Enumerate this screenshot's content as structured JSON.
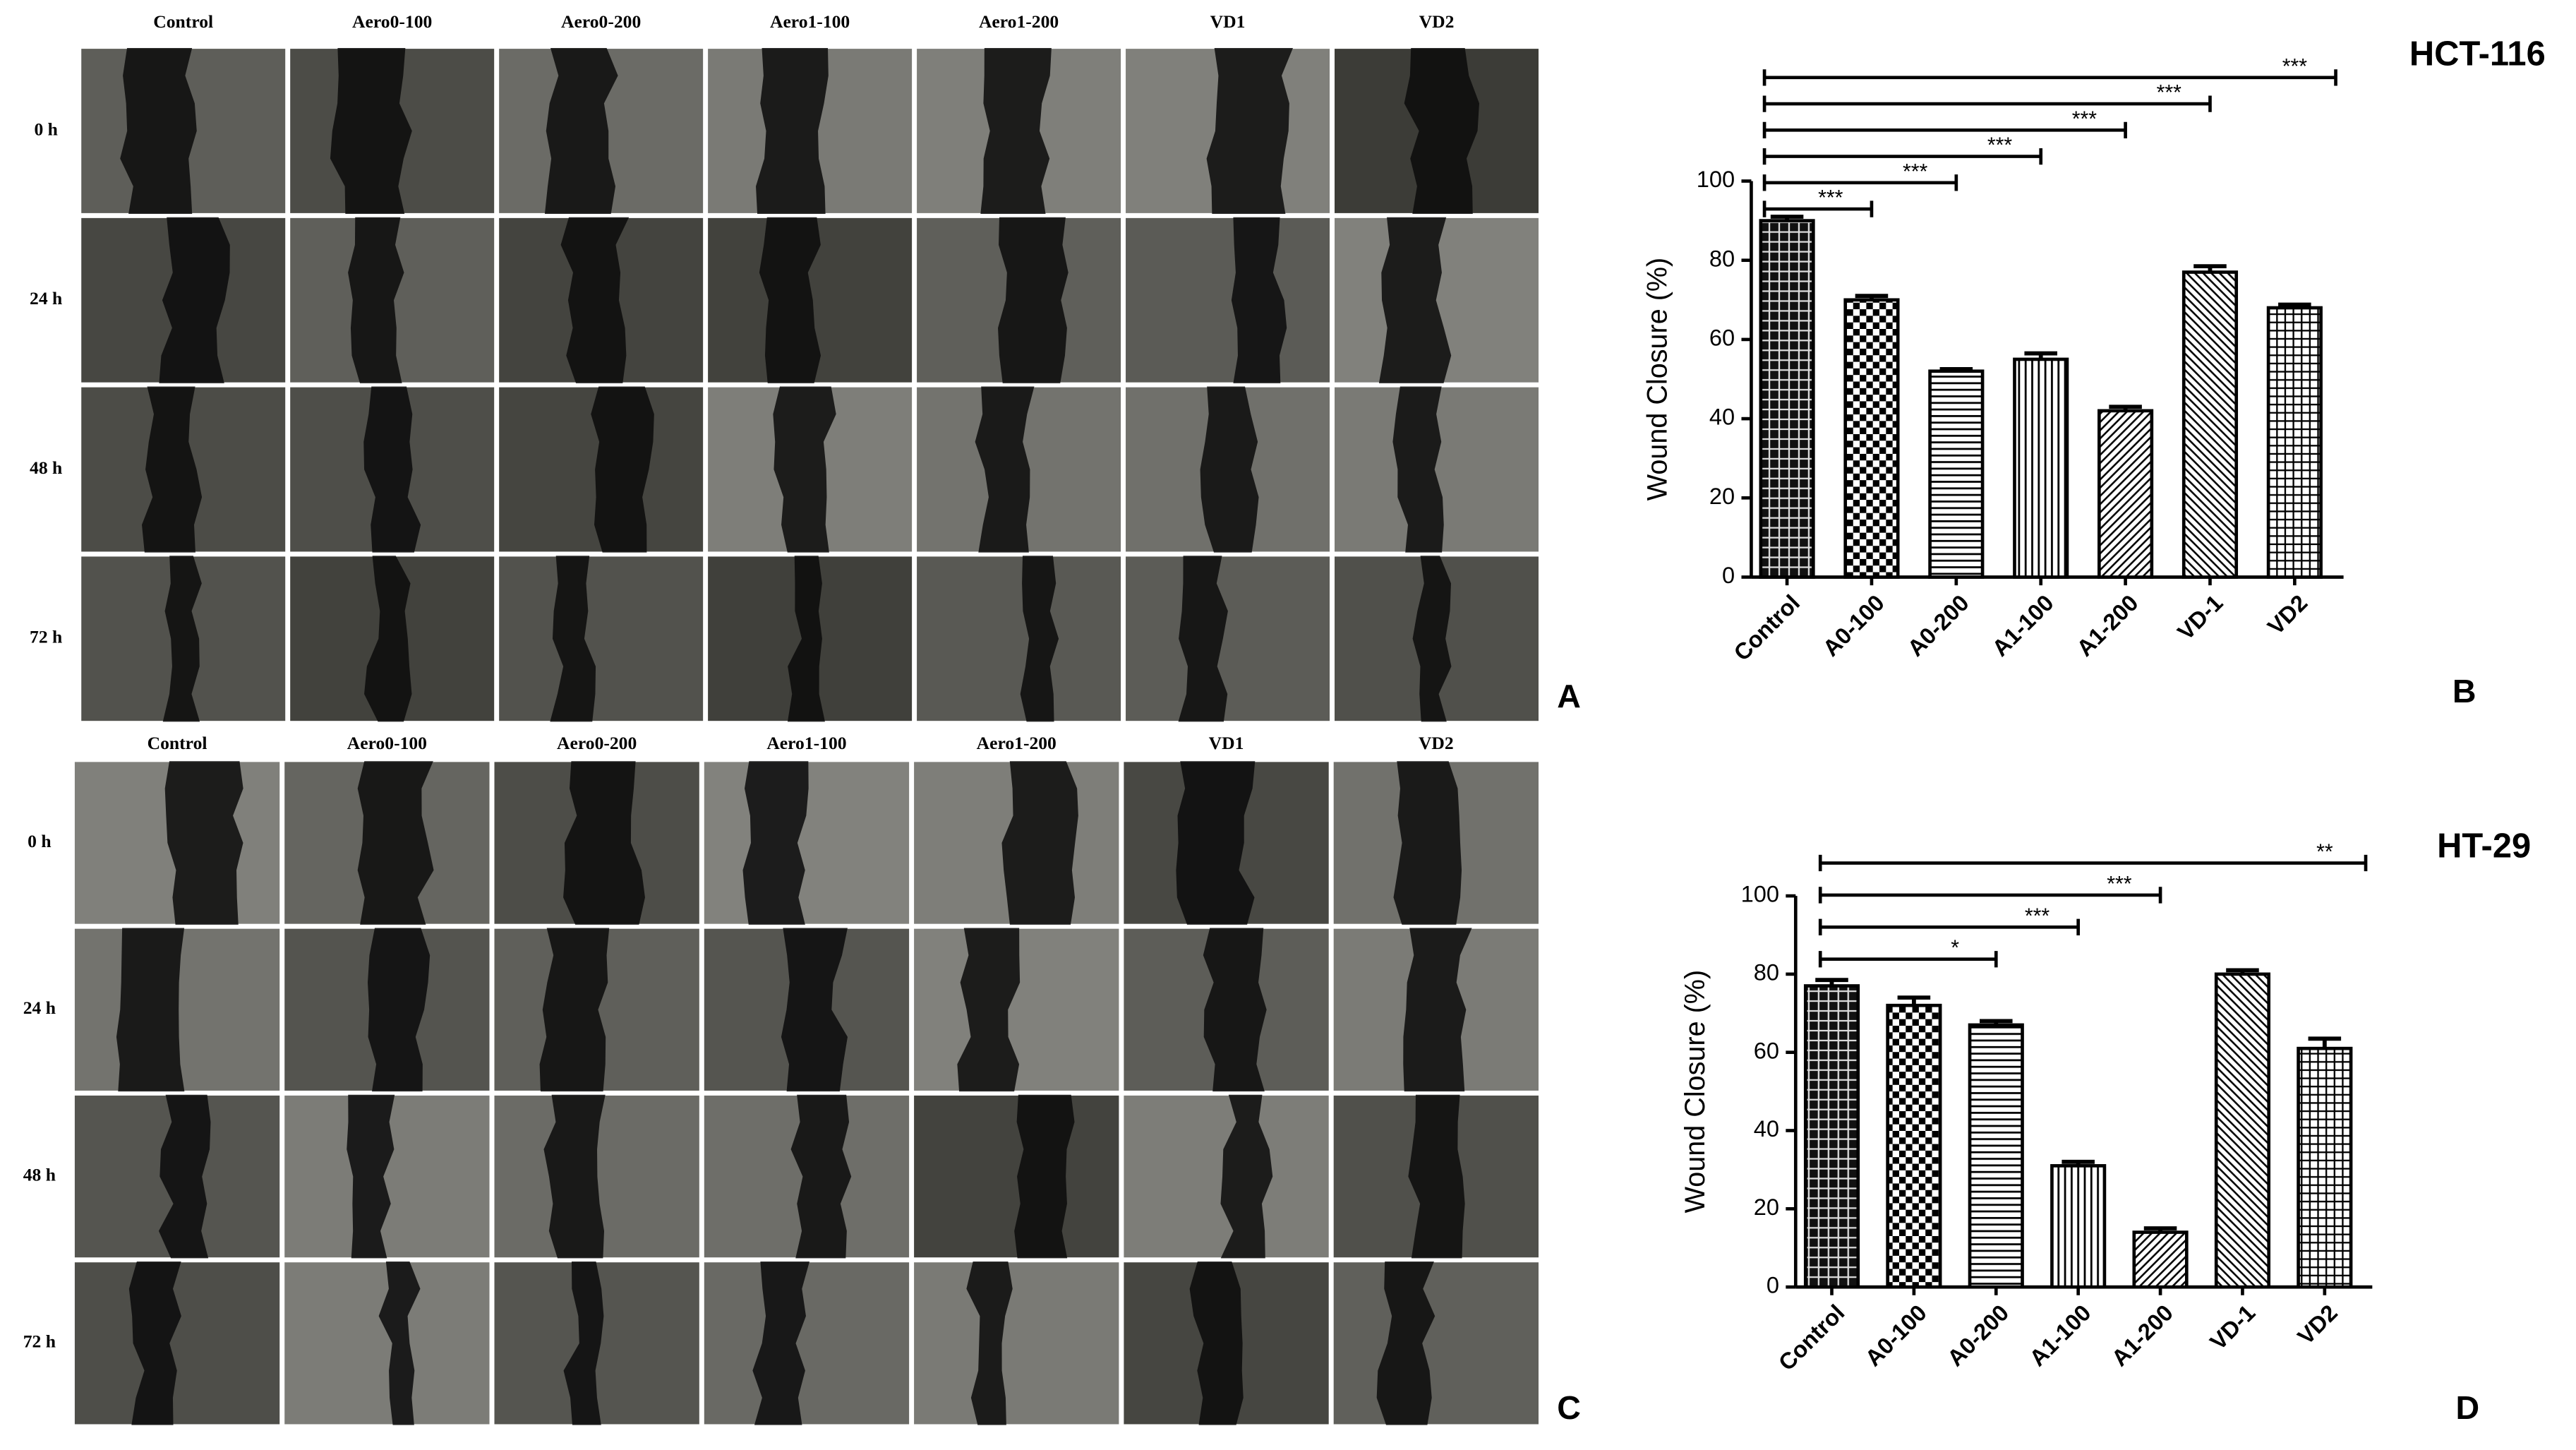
{
  "chart_data": [
    {
      "type": "bar",
      "label": "B",
      "title": "HCT-116",
      "ylabel": "Wound Closure (%)",
      "categories": [
        "Control",
        "A0-100",
        "A0-200",
        "A1-100",
        "A1-200",
        "VD-1",
        "VD2"
      ],
      "values": [
        90,
        70,
        52,
        55,
        42,
        77,
        68
      ],
      "errors": [
        1,
        1,
        0.5,
        1.5,
        1,
        1.5,
        0.8
      ],
      "significance": [
        null,
        "***",
        "***",
        "***",
        "***",
        "***",
        "***"
      ],
      "color": "#000000",
      "ylim": [
        0,
        100
      ],
      "yticks": [
        0,
        20,
        40,
        60,
        80,
        100
      ]
    },
    {
      "type": "bar",
      "label": "D",
      "title": "HT-29",
      "ylabel": "Wound Closure (%)",
      "categories": [
        "Control",
        "A0-100",
        "A0-200",
        "A1-100",
        "A1-200",
        "VD-1",
        "VD2"
      ],
      "values": [
        77,
        72,
        67,
        31,
        14,
        80,
        61
      ],
      "errors": [
        1.5,
        2,
        1,
        1,
        1,
        1,
        2.5
      ],
      "significance": [
        null,
        null,
        "*",
        "***",
        "***",
        null,
        "**"
      ],
      "color": "#000000",
      "ylim": [
        0,
        100
      ],
      "yticks": [
        0,
        20,
        40,
        60,
        80,
        100
      ]
    }
  ],
  "image_panels": [
    {
      "label": "A",
      "columns": [
        "Control",
        "Aero0-100",
        "Aero0-200",
        "Aero1-100",
        "Aero1-200",
        "VD1",
        "VD2"
      ],
      "rows": [
        "0 h",
        "24 h",
        "48 h",
        "72 h"
      ]
    },
    {
      "label": "C",
      "columns": [
        "Control",
        "Aero0-100",
        "Aero0-200",
        "Aero1-100",
        "Aero1-200",
        "VD1",
        "VD2"
      ],
      "rows": [
        "0 h",
        "24 h",
        "48 h",
        "72 h"
      ]
    }
  ]
}
